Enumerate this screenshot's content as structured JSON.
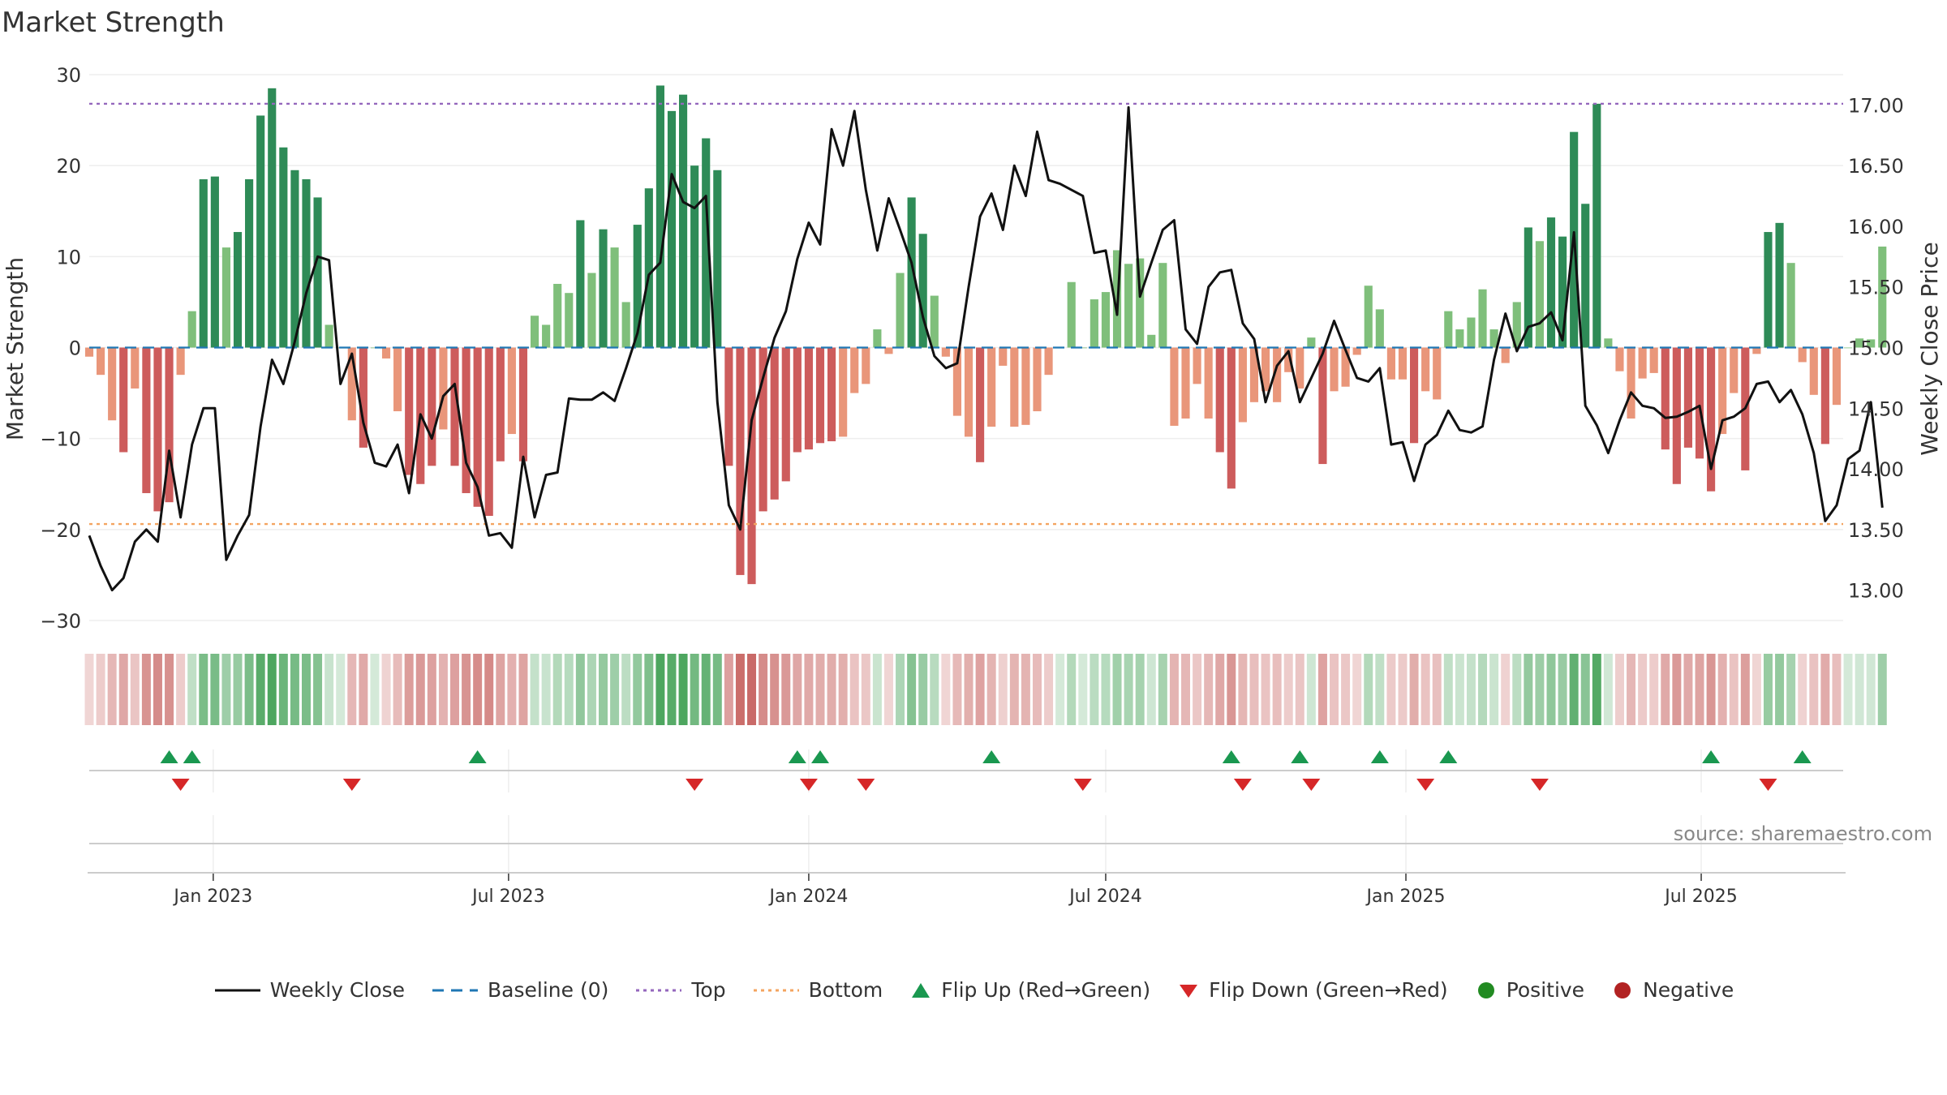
{
  "title": "Market Strength",
  "source": "source: sharemaestro.com",
  "colors": {
    "strongGreen": "#2e8b57",
    "lightGreen": "#7fbf7b",
    "strongRed": "#cd5c5c",
    "lightRed": "#e9967a",
    "close": "#111111",
    "baseline": "#1f77b4",
    "top": "#9467bd",
    "bottom": "#f4a460",
    "flipUp": "#1a9850",
    "flipDown": "#d62728",
    "positive": "#228b22",
    "negative": "#b22222"
  },
  "legend": [
    {
      "label": "Weekly Close",
      "kind": "line",
      "color": "#111111"
    },
    {
      "label": "Baseline (0)",
      "kind": "dash",
      "color": "#1f77b4"
    },
    {
      "label": "Top",
      "kind": "dot",
      "color": "#9467bd"
    },
    {
      "label": "Bottom",
      "kind": "dot",
      "color": "#f4a460"
    },
    {
      "label": "Flip Up (Red→Green)",
      "kind": "tri-up",
      "color": "#1a9850"
    },
    {
      "label": "Flip Down (Green→Red)",
      "kind": "tri-down",
      "color": "#d62728"
    },
    {
      "label": "Positive",
      "kind": "circle",
      "color": "#228b22"
    },
    {
      "label": "Negative",
      "kind": "circle",
      "color": "#b22222"
    }
  ],
  "chart_data": {
    "type": "bar",
    "ylabel": "Market Strength",
    "y2label": "Weekly Close Price",
    "ylim": [
      -30,
      30
    ],
    "y2lim": [
      12.75,
      17.25
    ],
    "yticks": [
      "30",
      "20",
      "10",
      "0",
      "−10",
      "−20",
      "−30"
    ],
    "y2ticks": [
      "17.00",
      "16.50",
      "16.00",
      "15.50",
      "15.00",
      "14.50",
      "14.00",
      "13.50",
      "13.00"
    ],
    "top_level": 26.8,
    "bottom_level": -19.4,
    "baseline": 0,
    "x_range": [
      "2022-10-17",
      "2025-09-26"
    ],
    "x_ticks": [
      {
        "label": "Jan 2023",
        "date": "2023-01-01"
      },
      {
        "label": "Jul 2023",
        "date": "2023-07-01"
      },
      {
        "label": "Jan 2024",
        "date": "2024-01-01"
      },
      {
        "label": "Jul 2024",
        "date": "2024-07-01"
      },
      {
        "label": "Jan 2025",
        "date": "2025-01-01"
      },
      {
        "label": "Jul 2025",
        "date": "2025-07-01"
      }
    ],
    "series": [
      {
        "name": "Market Strength",
        "start": "2022-10-17",
        "values": [
          -1,
          -3,
          -8,
          -11.5,
          -4.5,
          -16,
          -18,
          -17,
          -3,
          4,
          18.5,
          18.8,
          11,
          12.7,
          18.5,
          25.5,
          28.5,
          22,
          19.5,
          18.5,
          16.5,
          2.5,
          0,
          -8,
          -11,
          0,
          -1.2,
          -7,
          -14,
          -15,
          -13,
          -9,
          -13,
          -16,
          -17.5,
          -18.5,
          -12.5,
          -9.5,
          -12.5,
          3.5,
          2.5,
          7,
          6,
          14,
          8.2,
          13,
          11,
          5,
          13.5,
          17.5,
          28.8,
          26,
          27.8,
          20,
          23,
          19.5,
          -13,
          -25,
          -26,
          -18,
          -16.7,
          -14.7,
          -11.5,
          -11.2,
          -10.5,
          -10.3,
          -9.8,
          -5,
          -4,
          2,
          -0.7,
          8.2,
          16.5,
          12.5,
          5.7,
          -1,
          -7.5,
          -9.8,
          -12.6,
          -8.7,
          -2,
          -8.7,
          -8.5,
          -7,
          -3,
          0,
          7.2,
          0,
          5.3,
          6.1,
          10.7,
          9.2,
          9.8,
          1.4,
          9.3,
          -8.6,
          -7.8,
          -4,
          -7.8,
          -11.5,
          -15.5,
          -8.2,
          -6,
          -4.8,
          -6,
          -2.7,
          -4.5,
          1.1,
          -12.8,
          -4.8,
          -4.3,
          -0.8,
          6.8,
          4.2,
          -3.5,
          -3.5,
          -10.5,
          -4.8,
          -5.7,
          4,
          2,
          3.3,
          6.4,
          2,
          -1.7,
          5,
          13.2,
          11.7,
          14.3,
          12.2,
          23.7,
          15.8,
          26.8,
          1,
          -2.6,
          -7.8,
          -3.4,
          -2.8,
          -11.2,
          -15,
          -11,
          -12.2,
          -15.8,
          -9.5,
          -5,
          -13.5,
          -0.7,
          12.7,
          13.7,
          9.3,
          -1.6,
          -5.2,
          -10.6,
          -6.3,
          0,
          1,
          0.9,
          11.1
        ]
      },
      {
        "name": "Weekly Close",
        "start": "2022-10-17",
        "values": [
          13.45,
          13.2,
          13.0,
          13.1,
          13.4,
          13.5,
          13.4,
          14.15,
          13.6,
          14.2,
          14.5,
          14.5,
          13.25,
          13.45,
          13.62,
          14.35,
          14.9,
          14.7,
          15.05,
          15.45,
          15.75,
          15.72,
          14.7,
          14.95,
          14.38,
          14.05,
          14.02,
          14.2,
          13.8,
          14.45,
          14.25,
          14.6,
          14.7,
          14.05,
          13.85,
          13.45,
          13.47,
          13.35,
          14.1,
          13.6,
          13.95,
          13.97,
          14.58,
          14.57,
          14.57,
          14.63,
          14.56,
          14.83,
          15.12,
          15.6,
          15.7,
          16.43,
          16.2,
          16.15,
          16.25,
          14.55,
          13.7,
          13.5,
          14.4,
          14.75,
          15.08,
          15.3,
          15.73,
          16.03,
          15.85,
          16.8,
          16.5,
          16.95,
          16.3,
          15.8,
          16.23,
          15.97,
          15.7,
          15.25,
          14.93,
          14.83,
          14.87,
          15.5,
          16.08,
          16.27,
          15.97,
          16.5,
          16.25,
          16.78,
          16.38,
          16.35,
          16.3,
          16.25,
          15.78,
          15.8,
          15.27,
          16.98,
          15.42,
          15.7,
          15.97,
          16.05,
          15.15,
          15.03,
          15.5,
          15.62,
          15.64,
          15.2,
          15.07,
          14.55,
          14.85,
          14.97,
          14.55,
          14.75,
          14.95,
          15.22,
          14.98,
          14.75,
          14.72,
          14.83,
          14.2,
          14.22,
          13.9,
          14.2,
          14.28,
          14.48,
          14.32,
          14.3,
          14.35,
          14.9,
          15.28,
          14.97,
          15.17,
          15.2,
          15.29,
          15.06,
          15.95,
          14.52,
          14.36,
          14.13,
          14.4,
          14.63,
          14.52,
          14.5,
          14.42,
          14.43,
          14.47,
          14.52,
          14.0,
          14.4,
          14.43,
          14.5,
          14.7,
          14.72,
          14.55,
          14.65,
          14.45,
          14.13,
          13.57,
          13.7,
          14.08,
          14.15,
          14.55,
          13.68
        ]
      }
    ],
    "signal_strip": "Weekly signal strip mirroring Market Strength",
    "flip_up": [
      "2022-12-05",
      "2022-12-19",
      "2023-06-12",
      "2023-12-25",
      "2024-01-08",
      "2024-04-22",
      "2024-09-16",
      "2024-10-28",
      "2024-12-16",
      "2025-01-27",
      "2025-07-07",
      "2025-09-01"
    ],
    "flip_down": [
      "2022-12-12",
      "2023-03-27",
      "2023-10-23",
      "2024-01-01",
      "2024-02-05",
      "2024-06-17",
      "2024-09-23",
      "2024-11-04",
      "2025-01-13",
      "2025-03-24",
      "2025-08-11"
    ],
    "legend_position": "bottom"
  }
}
